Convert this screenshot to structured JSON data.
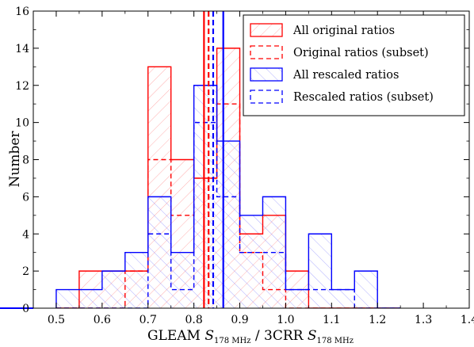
{
  "chart_data": {
    "type": "bar",
    "subtype": "step-histogram",
    "xlabel_parts": {
      "prefix": "GLEAM ",
      "s1": "S",
      "sub1": "178 MHz",
      "mid": " / 3CRR ",
      "s2": "S",
      "sub2": "178 MHz"
    },
    "ylabel": "Number",
    "xlim": [
      0.45,
      1.4
    ],
    "ylim": [
      0,
      16
    ],
    "x_ticks": [
      0.5,
      0.6,
      0.7,
      0.8,
      0.9,
      1.0,
      1.1,
      1.2,
      1.3,
      1.4
    ],
    "x_tick_labels": [
      "0.5",
      "0.6",
      "0.7",
      "0.8",
      "0.9",
      "1.0",
      "1.1",
      "1.2",
      "1.3",
      "1.4"
    ],
    "y_ticks": [
      0,
      2,
      4,
      6,
      8,
      10,
      12,
      14,
      16
    ],
    "y_tick_labels": [
      "0",
      "2",
      "4",
      "6",
      "8",
      "10",
      "12",
      "14",
      "16"
    ],
    "bin_edges": [
      0.5,
      0.55,
      0.6,
      0.65,
      0.7,
      0.75,
      0.8,
      0.85,
      0.9,
      0.95,
      1.0,
      1.05,
      1.1,
      1.15,
      1.2,
      1.25
    ],
    "series": [
      {
        "name": "All original ratios",
        "color": "#ff0000",
        "line_style": "solid",
        "hatch": "back-diagonal",
        "counts": [
          0,
          2,
          2,
          2,
          13,
          8,
          7,
          14,
          4,
          5,
          2,
          0,
          0,
          0,
          0
        ]
      },
      {
        "name": "Original ratios (subset)",
        "color": "#ff0000",
        "line_style": "dashed",
        "hatch": "none",
        "counts": [
          0,
          0,
          0,
          2,
          8,
          5,
          7,
          11,
          3,
          1,
          0,
          0,
          0,
          0,
          0
        ]
      },
      {
        "name": "All rescaled ratios",
        "color": "#0000ff",
        "line_style": "solid",
        "hatch": "forward-diagonal",
        "counts": [
          1,
          1,
          2,
          3,
          6,
          3,
          12,
          9,
          5,
          6,
          1,
          4,
          1,
          2,
          0
        ]
      },
      {
        "name": "Rescaled ratios (subset)",
        "color": "#0000ff",
        "line_style": "dashed",
        "hatch": "none",
        "counts": [
          0,
          0,
          0,
          0,
          4,
          1,
          10,
          6,
          3,
          3,
          1,
          1,
          1,
          0,
          0
        ]
      }
    ],
    "vertical_lines": [
      {
        "color": "#ff0000",
        "line_style": "solid",
        "x": 0.822
      },
      {
        "color": "#ff0000",
        "line_style": "dashed",
        "x": 0.832
      },
      {
        "color": "#0000ff",
        "line_style": "dashed",
        "x": 0.842
      },
      {
        "color": "#0000ff",
        "line_style": "solid",
        "x": 0.864
      }
    ],
    "legend_position": "top-right",
    "grid": false
  }
}
